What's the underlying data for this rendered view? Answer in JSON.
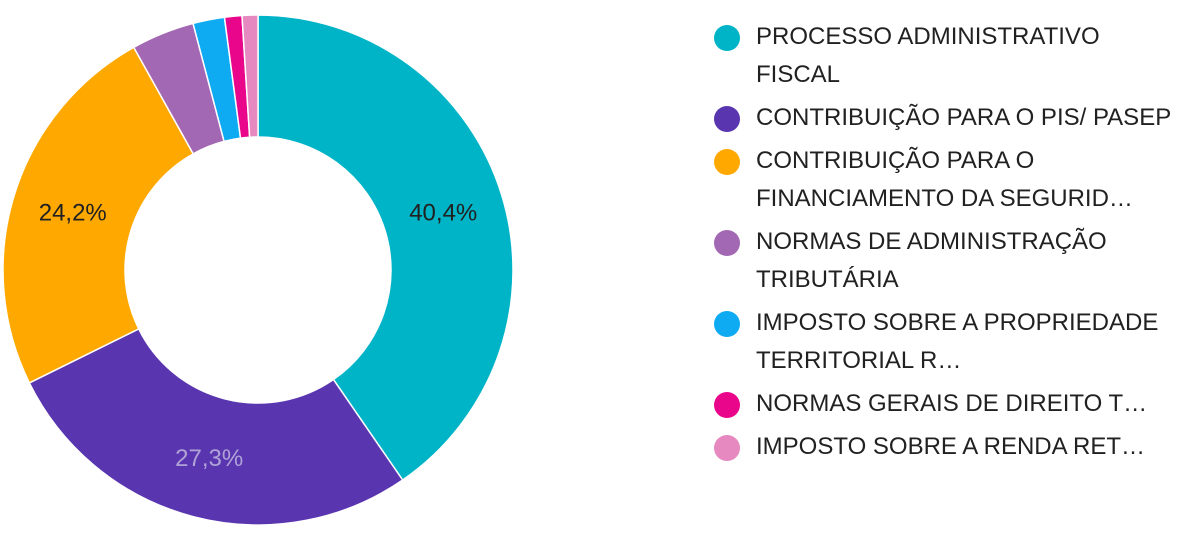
{
  "chart_data": {
    "type": "pie",
    "donut": true,
    "legend_position": "right",
    "slices": [
      {
        "label": "PROCESSO ADMINISTRATIVO FISCAL",
        "value": 40.4,
        "value_label": "40,4%",
        "color": "#00b4c8",
        "label_color": "#212121"
      },
      {
        "label": "CONTRIBUIÇÃO PARA O PIS/ PASEP",
        "value": 27.3,
        "value_label": "27,3%",
        "color": "#5a35b0",
        "label_color": "#b0a3d6"
      },
      {
        "label": "CONTRIBUIÇÃO PARA O FINANCIAMENTO DA SEGURID…",
        "value": 24.2,
        "value_label": "24,2%",
        "color": "#ffa900",
        "label_color": "#212121"
      },
      {
        "label": "NORMAS DE ADMINISTRAÇÃO TRIBUTÁRIA",
        "value": 4.0,
        "value_label": "",
        "color": "#a368b3",
        "label_color": "#212121"
      },
      {
        "label": "IMPOSTO SOBRE A PROPRIEDADE TERRITORIAL R…",
        "value": 2.0,
        "value_label": "",
        "color": "#0eaaf2",
        "label_color": "#212121"
      },
      {
        "label": "NORMAS GERAIS DE DIREITO T…",
        "value": 1.1,
        "value_label": "",
        "color": "#e9068a",
        "label_color": "#212121"
      },
      {
        "label": "IMPOSTO SOBRE A RENDA RET…",
        "value": 1.0,
        "value_label": "",
        "color": "#e589c0",
        "label_color": "#212121"
      }
    ]
  }
}
